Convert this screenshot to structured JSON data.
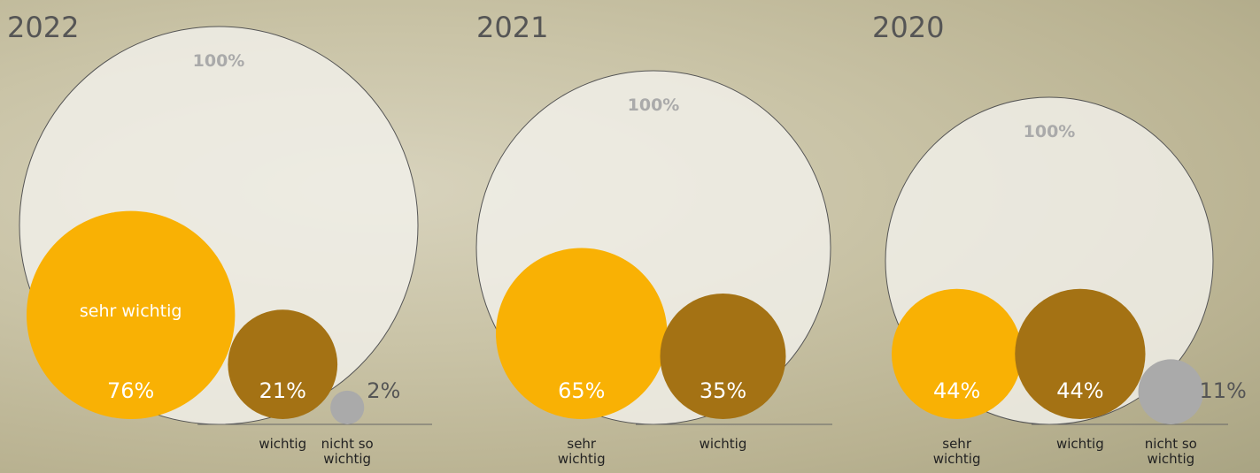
{
  "chart_data": [
    {
      "type": "bubble",
      "title": "2022",
      "total": {
        "value": 100,
        "label": "100%"
      },
      "categories": [
        "sehr wichtig",
        "wichtig",
        "nicht so wichtig"
      ],
      "values": [
        76,
        21,
        2
      ],
      "value_labels": [
        "76%",
        "21%",
        "2%"
      ],
      "colors": [
        "#f9b104",
        "#a47214",
        "#aaaaaa"
      ]
    },
    {
      "type": "bubble",
      "title": "2021",
      "total": {
        "value": 100,
        "label": "100%"
      },
      "categories": [
        "sehr wichtig",
        "wichtig"
      ],
      "values": [
        65,
        35
      ],
      "value_labels": [
        "65%",
        "35%"
      ],
      "colors": [
        "#f9b104",
        "#a47214"
      ]
    },
    {
      "type": "bubble",
      "title": "2020",
      "total": {
        "value": 100,
        "label": "100%"
      },
      "categories": [
        "sehr wichtig",
        "wichtig",
        "nicht so wichtig"
      ],
      "values": [
        44,
        44,
        11
      ],
      "value_labels": [
        "44%",
        "44%",
        "11%"
      ],
      "colors": [
        "#f9b104",
        "#a47214",
        "#aaaaaa"
      ]
    }
  ]
}
